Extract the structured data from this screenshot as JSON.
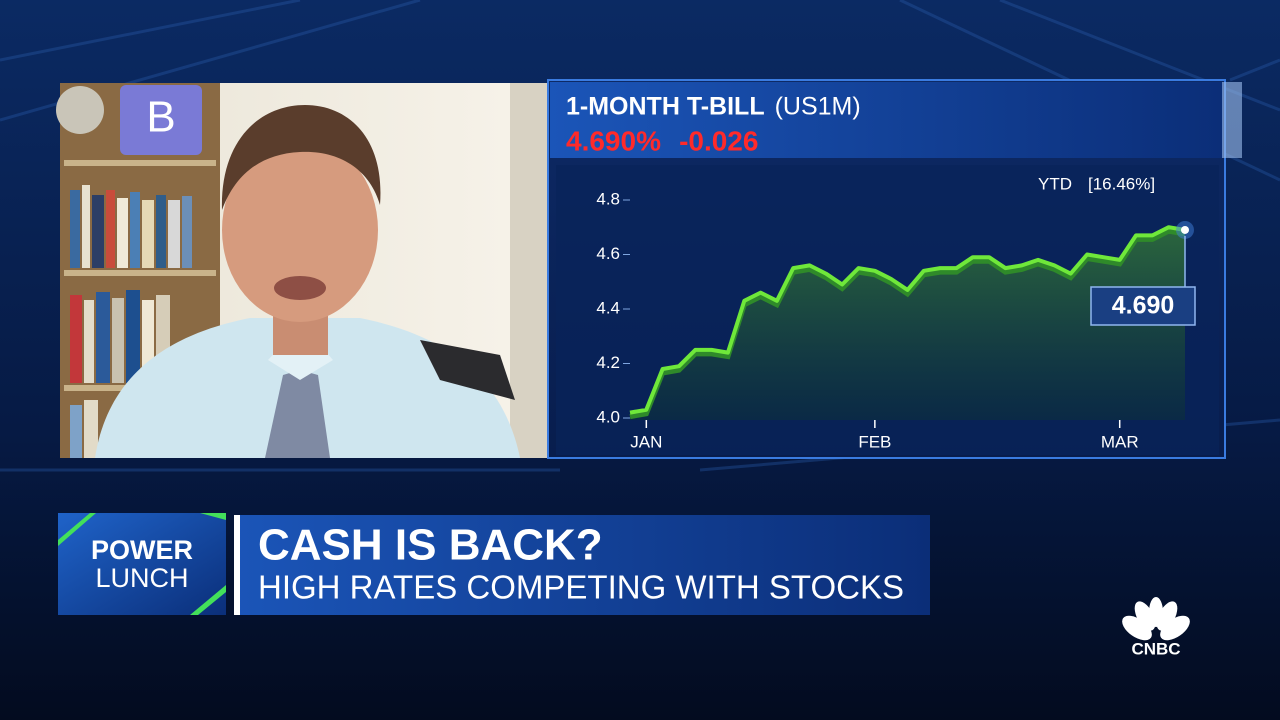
{
  "chart_data": {
    "type": "line",
    "title": "1-MONTH T-BILL",
    "symbol": "(US1M)",
    "price": "4.690%",
    "change": "-0.026",
    "annotation": "YTD",
    "ytd_change": "[16.46%]",
    "categories": [
      null,
      "JAN",
      null,
      null,
      null,
      null,
      null,
      null,
      null,
      null,
      null,
      null,
      null,
      null,
      null,
      "FEB",
      null,
      null,
      null,
      null,
      null,
      null,
      null,
      null,
      null,
      null,
      null,
      null,
      null,
      null,
      "MAR",
      null,
      null,
      null,
      null
    ],
    "values": [
      4.02,
      4.03,
      4.18,
      4.19,
      4.25,
      4.25,
      4.24,
      4.43,
      4.46,
      4.43,
      4.55,
      4.56,
      4.53,
      4.49,
      4.55,
      4.54,
      4.51,
      4.47,
      4.54,
      4.55,
      4.55,
      4.59,
      4.59,
      4.55,
      4.56,
      4.58,
      4.56,
      4.53,
      4.6,
      4.59,
      4.58,
      4.67,
      4.67,
      4.7,
      4.69
    ],
    "value_labels": [
      null,
      null,
      null,
      null,
      null,
      null,
      null,
      null,
      null,
      null,
      null,
      null,
      null,
      null,
      null,
      null,
      null,
      null,
      null,
      null,
      null,
      null,
      null,
      null,
      null,
      null,
      null,
      null,
      null,
      null,
      null,
      null,
      null,
      null,
      "4.690"
    ],
    "color": "#6fe83a",
    "ylim": [
      4.0,
      4.8
    ],
    "yticks": [
      {
        "value": 4.0,
        "label": "4.0"
      },
      4.2,
      4.4,
      4.6,
      4.8
    ],
    "grid": false
  },
  "lower_third": {
    "show_line1": "POWER",
    "show_line2": "LUNCH",
    "headline": "CASH IS BACK?",
    "subheadline": "HIGH RATES COMPETING WITH STOCKS"
  },
  "network": "CNBC"
}
